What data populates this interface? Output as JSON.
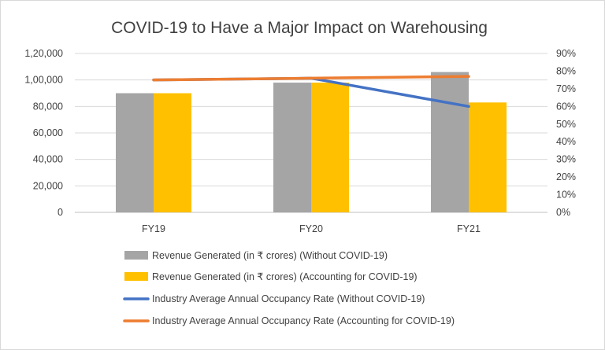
{
  "chart_data": {
    "type": "bar",
    "title": "COVID-19 to Have a Major Impact on Warehousing",
    "categories": [
      "FY19",
      "FY20",
      "FY21"
    ],
    "y_left": {
      "ylim": [
        0,
        120000
      ],
      "ticks": [
        0,
        20000,
        40000,
        60000,
        80000,
        100000,
        120000
      ],
      "tick_labels": [
        "0",
        "20,000",
        "40,000",
        "60,000",
        "80,000",
        "1,00,000",
        "1,20,000"
      ]
    },
    "y_right": {
      "ylim": [
        0,
        0.9
      ],
      "ticks": [
        0,
        0.1,
        0.2,
        0.3,
        0.4,
        0.5,
        0.6,
        0.7,
        0.8,
        0.9
      ],
      "tick_labels": [
        "0%",
        "10%",
        "20%",
        "30%",
        "40%",
        "50%",
        "60%",
        "70%",
        "80%",
        "90%"
      ]
    },
    "bar_series": [
      {
        "name": "Revenue Generated (in ₹ crores) (Without COVID-19)",
        "color": "#a5a5a5",
        "values": [
          90000,
          98000,
          106000
        ]
      },
      {
        "name": "Revenue Generated (in ₹ crores) (Accounting for COVID-19)",
        "color": "#ffc000",
        "values": [
          90000,
          98000,
          83000
        ]
      }
    ],
    "line_series": [
      {
        "name": "Industry Average Annual Occupancy Rate (Without COVID-19)",
        "color": "#4472c4",
        "values": [
          0.75,
          0.76,
          0.6
        ]
      },
      {
        "name": "Industry Average Annual Occupancy Rate (Accounting for COVID-19)",
        "color": "#ed7d31",
        "values": [
          0.75,
          0.76,
          0.77
        ]
      }
    ],
    "legend_position": "bottom",
    "grid": true
  }
}
